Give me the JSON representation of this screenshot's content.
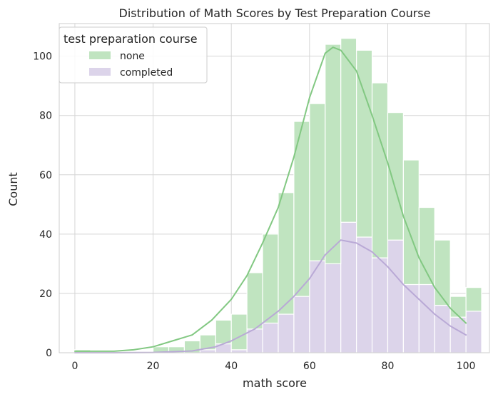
{
  "chart_data": {
    "type": "histogram",
    "title": "Distribution of Math Scores by Test Preparation Course",
    "xlabel": "math score",
    "ylabel": "Count",
    "xlim": [
      -4,
      106
    ],
    "ylim": [
      0,
      111
    ],
    "xticks": [
      0,
      20,
      40,
      60,
      80,
      100
    ],
    "yticks": [
      0,
      20,
      40,
      60,
      80,
      100
    ],
    "grid": true,
    "stacked": true,
    "legend": {
      "title": "test preparation course",
      "placement": "top-left",
      "entries": [
        "none",
        "completed"
      ]
    },
    "bins": [
      0,
      4,
      8,
      12,
      16,
      20,
      24,
      28,
      32,
      36,
      40,
      44,
      48,
      52,
      56,
      60,
      64,
      68,
      72,
      76,
      80,
      84,
      88,
      92,
      96,
      100
    ],
    "series": [
      {
        "name": "completed",
        "color": "#dcd4ea",
        "line_color": "#b9a9d6",
        "counts": [
          0,
          0,
          0,
          0,
          0,
          0,
          0,
          0,
          1,
          3,
          1,
          8,
          10,
          13,
          19,
          31,
          30,
          44,
          39,
          32,
          38,
          23,
          23,
          16,
          12,
          14
        ],
        "kde": [
          [
            0,
            0
          ],
          [
            10,
            0
          ],
          [
            20,
            0.1
          ],
          [
            30,
            0.6
          ],
          [
            36,
            2
          ],
          [
            40,
            4
          ],
          [
            46,
            8
          ],
          [
            52,
            14
          ],
          [
            56,
            19
          ],
          [
            60,
            25
          ],
          [
            64,
            33
          ],
          [
            68,
            38
          ],
          [
            72,
            37
          ],
          [
            76,
            34
          ],
          [
            80,
            29
          ],
          [
            84,
            23
          ],
          [
            88,
            18
          ],
          [
            92,
            13
          ],
          [
            96,
            9
          ],
          [
            100,
            6
          ]
        ]
      },
      {
        "name": "none",
        "color": "#c0e4c0",
        "line_color": "#82c882",
        "counts": [
          1,
          0,
          0,
          0,
          0,
          2,
          2,
          4,
          5,
          8,
          12,
          19,
          30,
          41,
          59,
          53,
          74,
          62,
          63,
          59,
          43,
          42,
          26,
          22,
          7,
          8
        ],
        "kde": [
          [
            0,
            0.5
          ],
          [
            10,
            0.5
          ],
          [
            15,
            1
          ],
          [
            20,
            2
          ],
          [
            25,
            4
          ],
          [
            30,
            6
          ],
          [
            35,
            11
          ],
          [
            40,
            18
          ],
          [
            44,
            26
          ],
          [
            48,
            37
          ],
          [
            52,
            49
          ],
          [
            56,
            66
          ],
          [
            60,
            86
          ],
          [
            64,
            101
          ],
          [
            66,
            103
          ],
          [
            68,
            102
          ],
          [
            72,
            95
          ],
          [
            76,
            80
          ],
          [
            80,
            64
          ],
          [
            84,
            46
          ],
          [
            88,
            32
          ],
          [
            92,
            22
          ],
          [
            96,
            15
          ],
          [
            100,
            10
          ]
        ]
      }
    ]
  }
}
